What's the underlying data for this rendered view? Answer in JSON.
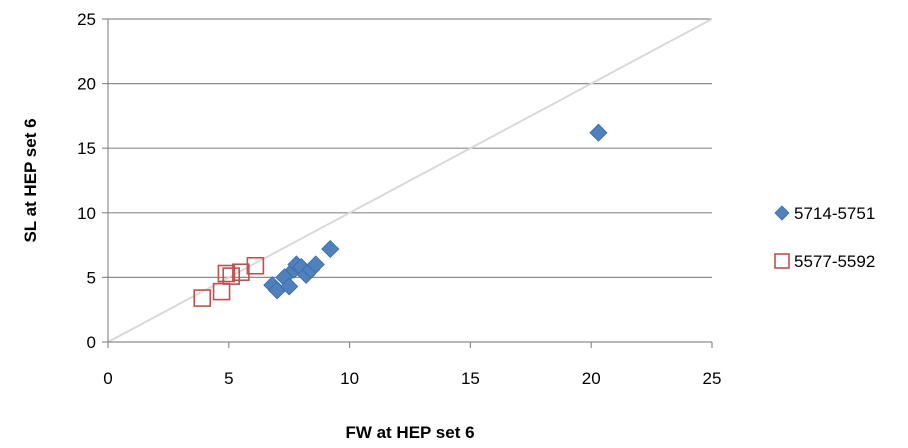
{
  "chart_data": {
    "type": "scatter",
    "title": "",
    "xlabel": "FW at HEP set 6",
    "ylabel": "SL at HEP set 6",
    "xlim": [
      0,
      25
    ],
    "ylim": [
      0,
      25
    ],
    "x_ticks": [
      0,
      5,
      10,
      15,
      20,
      25
    ],
    "y_ticks": [
      0,
      5,
      10,
      15,
      20,
      25
    ],
    "x_tick_labels": [
      "0",
      "5",
      "10",
      "15",
      "20",
      "25"
    ],
    "y_tick_labels": [
      "0",
      "5",
      "10",
      "15",
      "20",
      "25"
    ],
    "grid": "horizontal",
    "reference_line": {
      "from": [
        0,
        0
      ],
      "to": [
        25,
        25
      ],
      "color": "#d9d9d9"
    },
    "legend_position": "right",
    "series": [
      {
        "name": "5714-5751",
        "marker": "diamond",
        "color": "#4f81bd",
        "points": [
          [
            6.8,
            4.4
          ],
          [
            7.0,
            4.0
          ],
          [
            7.3,
            5.0
          ],
          [
            7.5,
            4.3
          ],
          [
            7.7,
            5.6
          ],
          [
            7.8,
            6.0
          ],
          [
            8.0,
            5.8
          ],
          [
            8.2,
            5.2
          ],
          [
            8.4,
            5.6
          ],
          [
            8.6,
            6.0
          ],
          [
            9.2,
            7.2
          ],
          [
            20.3,
            16.2
          ]
        ]
      },
      {
        "name": "5577-5592",
        "marker": "square-open",
        "color": "#c0504d",
        "points": [
          [
            3.9,
            3.4
          ],
          [
            4.7,
            3.9
          ],
          [
            4.9,
            5.3
          ],
          [
            5.1,
            5.1
          ],
          [
            5.5,
            5.4
          ],
          [
            6.1,
            5.9
          ]
        ]
      }
    ]
  }
}
